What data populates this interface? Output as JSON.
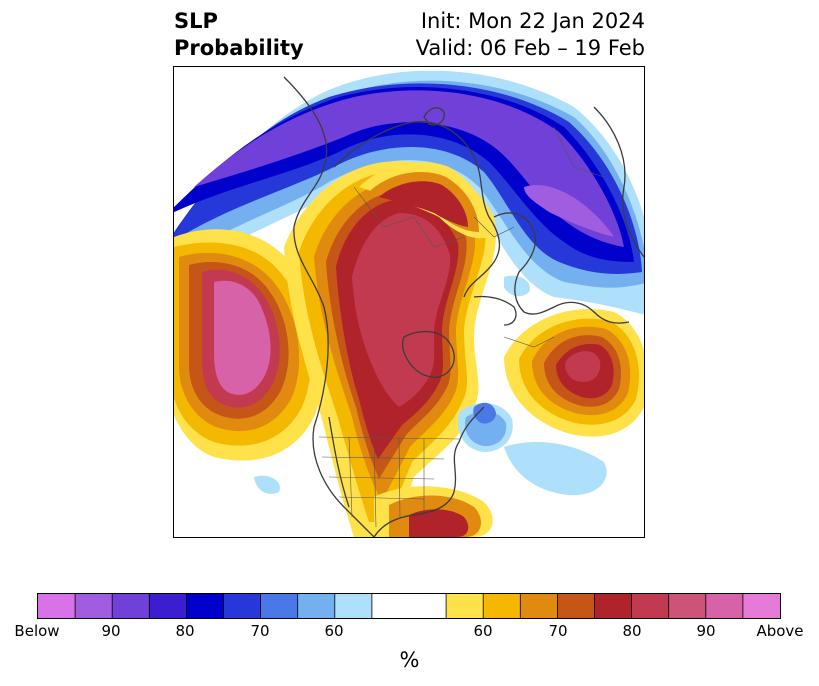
{
  "title": {
    "left_line1": "SLP",
    "left_line2": "Probability",
    "right_line1": "Init: Mon 22 Jan 2024",
    "right_line2": "Valid: 06 Feb – 19 Feb"
  },
  "map": {
    "projection": "north-polar-stereographic",
    "variable": "SLP probability",
    "regions": [
      {
        "name": "north-pacific-high",
        "level": "above",
        "max": "above-90"
      },
      {
        "name": "arctic-high",
        "level": "above",
        "max": "above-90"
      },
      {
        "name": "siberia-high",
        "level": "above",
        "max": "above-80"
      },
      {
        "name": "north-atlantic-high",
        "level": "above",
        "max": "above-90"
      },
      {
        "name": "eurasia-low",
        "level": "below",
        "max": "below-90"
      },
      {
        "name": "newfoundland-low",
        "level": "below",
        "max": "below-70"
      },
      {
        "name": "mid-atlantic-low",
        "level": "below",
        "max": "below-60"
      }
    ]
  },
  "colorbar": {
    "below_colors": [
      "#d772e8",
      "#a05de0",
      "#7040d8",
      "#3a1ed0",
      "#0000cc",
      "#2638d8",
      "#4a78e6",
      "#74b0f0",
      "#aee0fb"
    ],
    "neutral_color": "#ffffff",
    "above_colors": [
      "#ffe24a",
      "#f5b800",
      "#e08a10",
      "#c65518",
      "#b0232a",
      "#c23a50",
      "#cc5478",
      "#d862a8",
      "#e67ad8"
    ],
    "tick_labels": [
      "Below",
      "90",
      "80",
      "70",
      "60",
      "60",
      "70",
      "80",
      "90",
      "Above"
    ],
    "unit": "%"
  }
}
